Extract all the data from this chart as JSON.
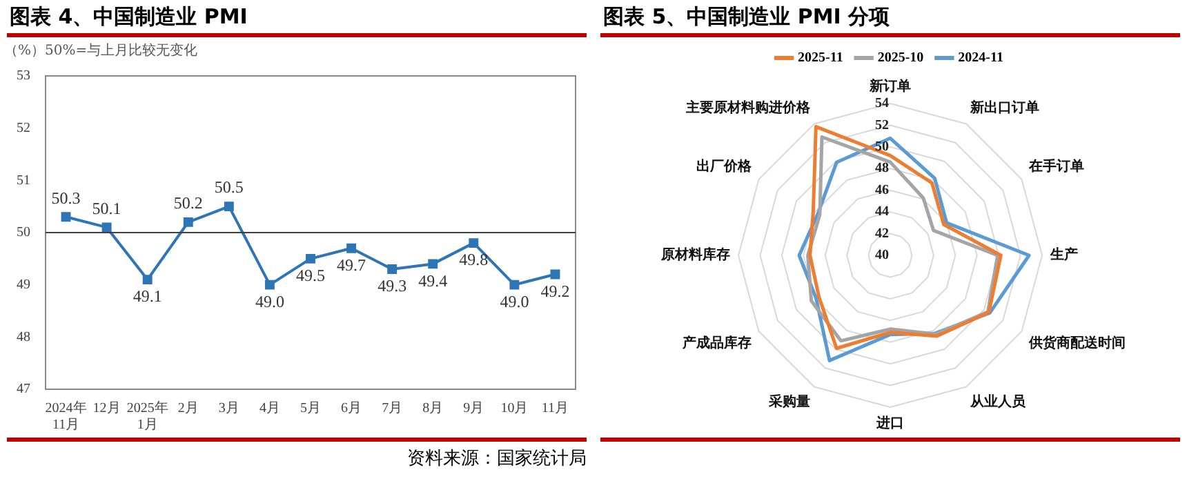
{
  "chart_data": [
    {
      "type": "line",
      "title": "图表 4、中国制造业 PMI",
      "ylabel": "（%）50%=与上月比较无变化",
      "categories": [
        "2024年\n11月",
        "12月",
        "2025年\n1月",
        "2月",
        "3月",
        "4月",
        "5月",
        "6月",
        "7月",
        "8月",
        "9月",
        "10月",
        "11月"
      ],
      "values": [
        50.3,
        50.1,
        49.1,
        50.2,
        50.5,
        49.0,
        49.5,
        49.7,
        49.3,
        49.4,
        49.8,
        49.0,
        49.2
      ],
      "value_labels": [
        "50.3",
        "50.1",
        "49.1",
        "50.2",
        "50.5",
        "49.0",
        "49.5",
        "49.7",
        "49.3",
        "49.4",
        "49.8",
        "49.0",
        "49.2"
      ],
      "color": "#2e75b6",
      "marker": "square",
      "grid": false,
      "ylim": [
        47,
        53
      ],
      "yticks": [
        47,
        48,
        49,
        50,
        51,
        52,
        53
      ],
      "ref_lines": [
        {
          "axis": "y",
          "value": 50,
          "color": "#404040"
        }
      ],
      "annotations": [
        "资料来源：国家统计局"
      ]
    },
    {
      "type": "radar",
      "title": "图表 5、中国制造业 PMI 分项",
      "categories": [
        "新订单",
        "新出口订单",
        "在手订单",
        "生产",
        "供货商配送时间",
        "从业人员",
        "进口",
        "采购量",
        "产成品库存",
        "原材料库存",
        "出厂价格",
        "主要原材料购进价格"
      ],
      "series": [
        {
          "name": "2025-11",
          "color": "#ed7d31",
          "values": [
            49.2,
            47.7,
            45.7,
            50.2,
            50.5,
            48.6,
            47.1,
            49.9,
            47.6,
            47.4,
            48.2,
            53.7
          ]
        },
        {
          "name": "2025-10",
          "color": "#a5a5a5",
          "values": [
            48.6,
            46.1,
            44.6,
            49.9,
            50.4,
            48.4,
            46.8,
            49.1,
            48.4,
            47.6,
            47.5,
            52.6
          ]
        },
        {
          "name": "2024-11",
          "color": "#5b9bd5",
          "values": [
            50.8,
            48.2,
            46.0,
            52.8,
            50.6,
            48.3,
            47.3,
            51.2,
            47.9,
            48.4,
            47.7,
            49.9
          ]
        }
      ],
      "ylim": [
        40,
        54
      ],
      "yticks": [
        40,
        42,
        44,
        46,
        48,
        50,
        52,
        54
      ],
      "grid": true,
      "legend": "top",
      "marker": "none"
    }
  ]
}
